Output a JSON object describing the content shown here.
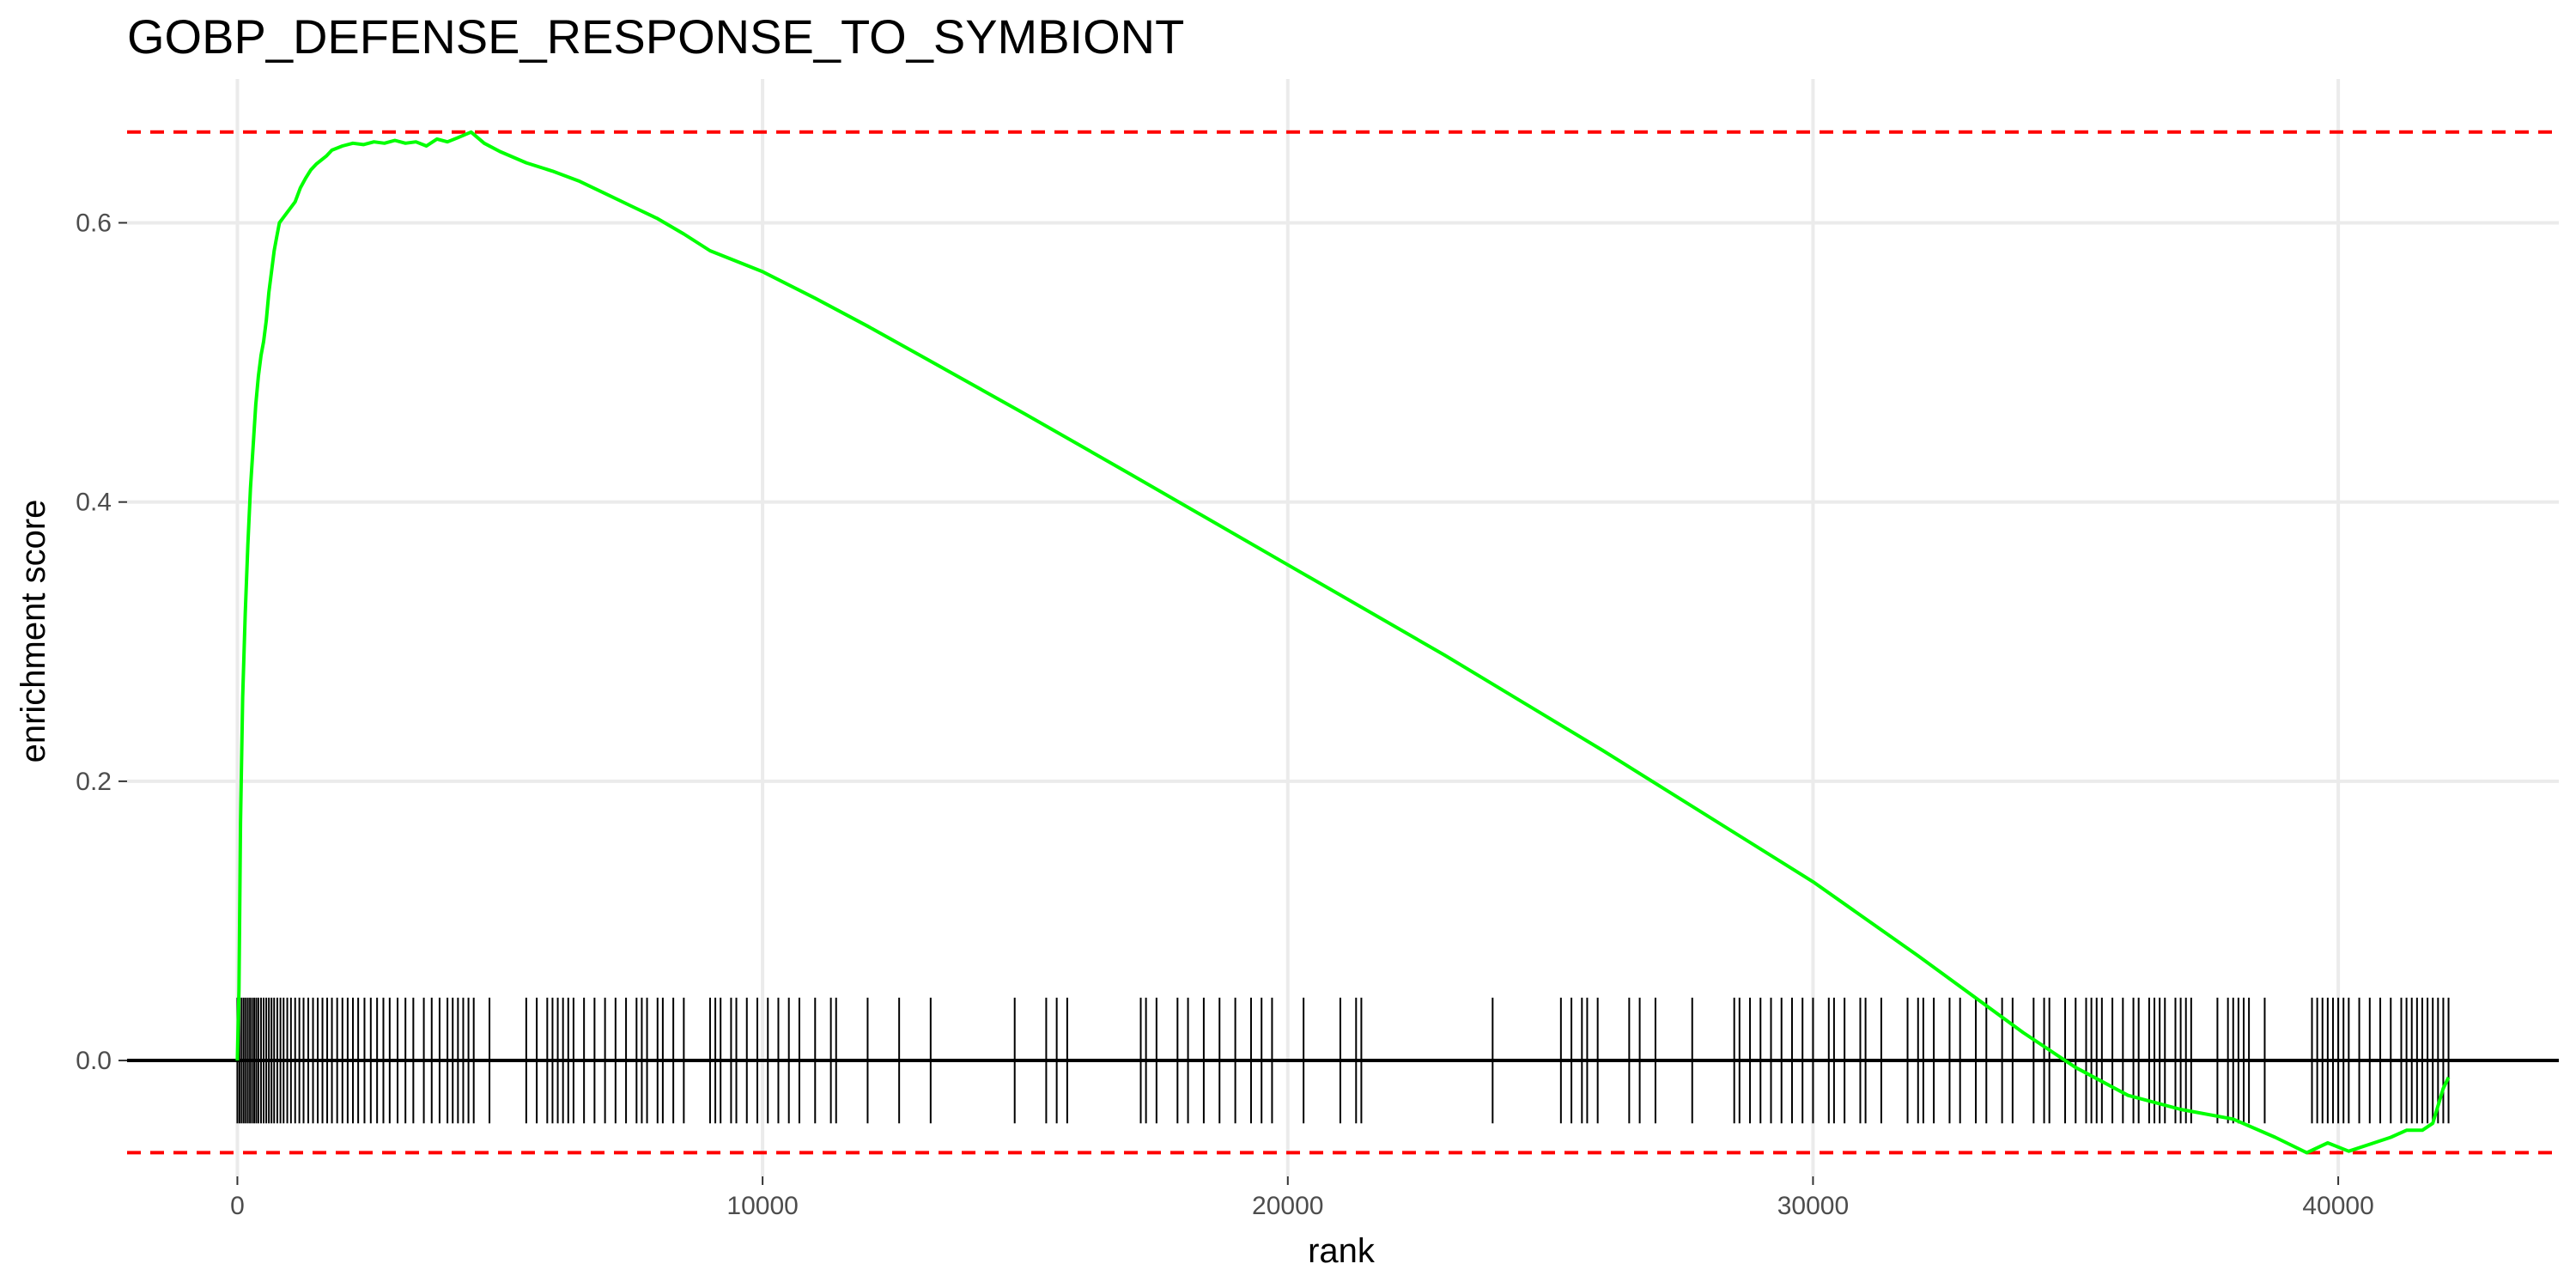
{
  "chart_data": {
    "type": "line",
    "title": "GOBP_DEFENSE_RESPONSE_TO_SYMBIONT",
    "xlabel": "rank",
    "ylabel": "enrichment score",
    "xlim": [
      -2100,
      44200
    ],
    "ylim": [
      -0.083,
      0.703
    ],
    "x_ticks": [
      0,
      10000,
      20000,
      30000,
      40000
    ],
    "y_ticks": [
      0.0,
      0.2,
      0.4,
      0.6
    ],
    "x_tick_labels": [
      "0",
      "10000",
      "20000",
      "30000",
      "40000"
    ],
    "y_tick_labels": [
      "0.0",
      "0.2",
      "0.4",
      "0.6"
    ],
    "grid": true,
    "legend": "none",
    "colors": {
      "curve": "#00ff00",
      "threshold": "#ff0000",
      "rug": "#000000",
      "zero": "#000000",
      "grid": "#ebebeb"
    },
    "thresholds": [
      0.665,
      -0.066
    ],
    "rug_range": [
      -0.045,
      0.045
    ],
    "series": [
      {
        "x": [
          0,
          30,
          60,
          100,
          150,
          200,
          250,
          300,
          350,
          400,
          450,
          500,
          550,
          600,
          650,
          700,
          750,
          800,
          900,
          1000,
          1100,
          1200,
          1300,
          1400,
          1500,
          1600,
          1700,
          1800,
          2000,
          2200,
          2400,
          2600,
          2800,
          3000,
          3200,
          3400,
          3600,
          3800,
          4000,
          4200,
          4450,
          4700,
          5000,
          5500,
          6000,
          6500,
          7000,
          7500,
          8000,
          8500,
          9000,
          10000,
          11000,
          12000,
          13000,
          15000,
          17000,
          20000,
          23000,
          26000,
          30000,
          32000,
          34000,
          35000,
          36000,
          37000,
          38000,
          38800,
          39400,
          39800,
          40200,
          40600,
          41000,
          41300,
          41600,
          41800,
          42000,
          42100
        ],
        "y": [
          0.0,
          0.05,
          0.17,
          0.26,
          0.32,
          0.37,
          0.41,
          0.44,
          0.47,
          0.49,
          0.505,
          0.515,
          0.53,
          0.55,
          0.565,
          0.58,
          0.59,
          0.6,
          0.605,
          0.61,
          0.615,
          0.625,
          0.632,
          0.638,
          0.642,
          0.645,
          0.648,
          0.652,
          0.655,
          0.657,
          0.656,
          0.658,
          0.657,
          0.659,
          0.657,
          0.658,
          0.655,
          0.66,
          0.658,
          0.661,
          0.665,
          0.657,
          0.651,
          0.643,
          0.637,
          0.63,
          0.621,
          0.612,
          0.603,
          0.592,
          0.58,
          0.565,
          0.546,
          0.526,
          0.505,
          0.463,
          0.42,
          0.355,
          0.29,
          0.222,
          0.128,
          0.075,
          0.02,
          -0.005,
          -0.025,
          -0.035,
          -0.042,
          -0.055,
          -0.066,
          -0.059,
          -0.065,
          -0.06,
          -0.055,
          -0.05,
          -0.05,
          -0.045,
          -0.02,
          -0.012
        ]
      }
    ],
    "rug_x": [
      0,
      40,
      80,
      120,
      160,
      200,
      240,
      280,
      320,
      360,
      400,
      450,
      500,
      550,
      600,
      650,
      700,
      760,
      820,
      880,
      950,
      1020,
      1100,
      1180,
      1260,
      1350,
      1440,
      1530,
      1620,
      1710,
      1800,
      1900,
      2000,
      2100,
      2200,
      2300,
      2420,
      2540,
      2660,
      2780,
      2900,
      3050,
      3200,
      3350,
      3550,
      3700,
      3850,
      4000,
      4100,
      4200,
      4300,
      4400,
      4500,
      4800,
      5500,
      5700,
      5900,
      6000,
      6100,
      6200,
      6300,
      6400,
      6600,
      6800,
      7000,
      7200,
      7400,
      7600,
      7700,
      7800,
      8000,
      8100,
      8300,
      8500,
      9000,
      9100,
      9200,
      9400,
      9500,
      9700,
      9900,
      10100,
      10300,
      10500,
      10700,
      11000,
      11300,
      11400,
      12000,
      12600,
      13200,
      14800,
      15400,
      15600,
      15800,
      17200,
      17300,
      17500,
      17900,
      18100,
      18400,
      18700,
      19000,
      19300,
      19500,
      19700,
      20300,
      21000,
      21300,
      21400,
      23900,
      25200,
      25400,
      25600,
      25700,
      25900,
      26500,
      26700,
      27000,
      27700,
      28500,
      28600,
      28800,
      29000,
      29200,
      29400,
      29600,
      29800,
      30000,
      30300,
      30400,
      30600,
      30900,
      31000,
      31300,
      31800,
      32000,
      32100,
      32300,
      32600,
      32800,
      33100,
      33300,
      33600,
      33800,
      34200,
      34400,
      34500,
      34800,
      35000,
      35200,
      35300,
      35400,
      35500,
      35700,
      35900,
      36100,
      36200,
      36400,
      36500,
      36600,
      36700,
      36900,
      37000,
      37100,
      37200,
      37700,
      37900,
      38000,
      38100,
      38200,
      38300,
      38600,
      39500,
      39600,
      39700,
      39800,
      39900,
      40000,
      40100,
      40200,
      40400,
      40600,
      40800,
      41000,
      41200,
      41300,
      41400,
      41500,
      41600,
      41700,
      41800,
      41900,
      42000,
      42100
    ]
  }
}
